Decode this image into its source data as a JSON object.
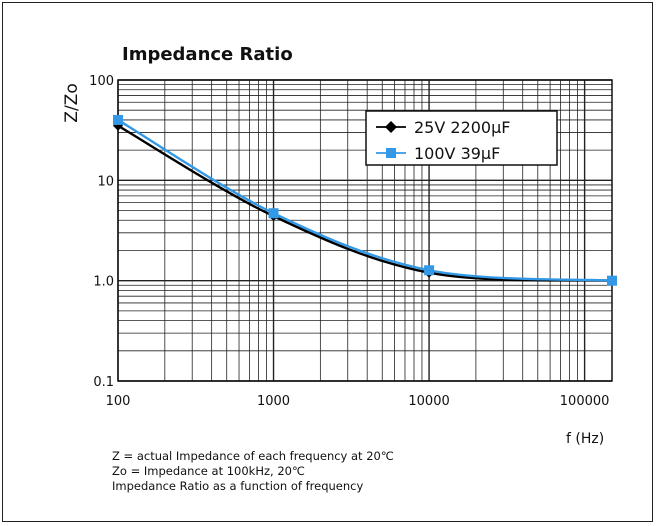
{
  "chart_data": {
    "type": "line",
    "title": "Impedance Ratio",
    "ylabel": "Z/Zo",
    "xlabel": "f (Hz)",
    "xscale": "log",
    "yscale": "log",
    "xlim": [
      100,
      150000
    ],
    "ylim": [
      0.1,
      100
    ],
    "x_ticks": [
      "100",
      "1000",
      "10000",
      "100000"
    ],
    "y_ticks": [
      "100",
      "10",
      "1.0",
      "0.1"
    ],
    "grid": true,
    "legend_position": "top-right",
    "series": [
      {
        "name": "25V 2200μF",
        "color": "#000000",
        "marker": "diamond",
        "points": [
          {
            "x": 100,
            "y": 35
          },
          {
            "x": 1000,
            "y": 4.4
          },
          {
            "x": 10000,
            "y": 1.2
          },
          {
            "x": 150000,
            "y": 1.0
          }
        ]
      },
      {
        "name": "100V 39μF",
        "color": "#3399e6",
        "marker": "square",
        "points": [
          {
            "x": 100,
            "y": 40
          },
          {
            "x": 1000,
            "y": 4.7
          },
          {
            "x": 10000,
            "y": 1.27
          },
          {
            "x": 150000,
            "y": 1.0
          }
        ]
      }
    ]
  },
  "notes": [
    "Z = actual Impedance of each frequency at 20℃",
    "Zo = Impedance at 100kHz, 20℃",
    "Impedance Ratio as a function of frequency"
  ]
}
